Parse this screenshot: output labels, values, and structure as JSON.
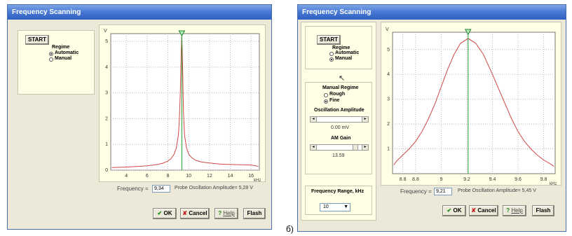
{
  "left": {
    "title": "Frequency Scanning",
    "start": "START",
    "regime_title": "Regime",
    "regime_options": [
      "Automatic",
      "Manual"
    ],
    "regime_selected": "Automatic",
    "frequency_label": "Frequency =",
    "frequency_value": "9,34",
    "amplitude_text": "Probe Oscillation Amplitude= 5,28 V",
    "buttons": {
      "ok": "OK",
      "cancel": "Cancel",
      "help": "Help",
      "flash": "Flash"
    },
    "chart_data": {
      "type": "line",
      "ylabel": "V",
      "xlabel": "kHz",
      "x_ticks": [
        "4",
        "6",
        "8",
        "10",
        "12",
        "14",
        "16"
      ],
      "y_ticks": [
        "0",
        "1",
        "2",
        "3",
        "4",
        "5"
      ],
      "xlim": [
        2.5,
        16.8
      ],
      "ylim": [
        0,
        5.3
      ],
      "marker_x": 9.34,
      "series": [
        {
          "color": "#d04848",
          "x": [
            2.6,
            4,
            5,
            6,
            7,
            7.5,
            8,
            8.3,
            8.6,
            8.8,
            9.0,
            9.1,
            9.2,
            9.28,
            9.34,
            9.4,
            9.5,
            9.6,
            9.8,
            10.0,
            10.3,
            10.7,
            11.2,
            12,
            13,
            14,
            15,
            16,
            16.7
          ],
          "y": [
            0.1,
            0.12,
            0.14,
            0.17,
            0.22,
            0.27,
            0.35,
            0.45,
            0.62,
            0.85,
            1.35,
            1.9,
            3.1,
            4.6,
            5.2,
            4.3,
            2.2,
            1.35,
            0.85,
            0.62,
            0.48,
            0.38,
            0.32,
            0.28,
            0.24,
            0.22,
            0.21,
            0.2,
            0.15
          ]
        }
      ]
    }
  },
  "right": {
    "title": "Frequency Scanning",
    "start": "START",
    "regime_title": "Regime",
    "regime_options": [
      "Automatic",
      "Manual"
    ],
    "regime_selected": "Manual",
    "manual_title": "Manual Regime",
    "manual_options": [
      "Rough",
      "Fine"
    ],
    "manual_selected": "Fine",
    "osc_title": "Oscillation Amplitude",
    "osc_value": "0.00 mV",
    "am_title": "AM Gain",
    "am_value": "13.59",
    "range_title": "Frequency Range, kHz",
    "range_value": "10",
    "frequency_label": "Frequency =",
    "frequency_value": "9,21",
    "amplitude_text": "Probe Oscillation Amplitude= 5,45 V",
    "buttons": {
      "ok": "OK",
      "cancel": "Cancel",
      "help": "Help",
      "flash": "Flash"
    },
    "chart_data": {
      "type": "line",
      "ylabel": "V",
      "xlabel": "kHz",
      "x_ticks": [
        "8.8",
        "8.8",
        "9",
        "9.2",
        "9.4",
        "9.6",
        "9.8"
      ],
      "y_ticks": [
        "1",
        "2",
        "3",
        "4",
        "5"
      ],
      "xlim": [
        8.62,
        9.89
      ],
      "ylim": [
        0,
        5.7
      ],
      "marker_x": 9.21,
      "series": [
        {
          "color": "#d04848",
          "x": [
            8.63,
            8.65,
            8.7,
            8.75,
            8.8,
            8.85,
            8.9,
            8.95,
            9.0,
            9.05,
            9.1,
            9.15,
            9.21,
            9.27,
            9.33,
            9.4,
            9.45,
            9.5,
            9.55,
            9.6,
            9.65,
            9.7,
            9.75,
            9.8,
            9.85,
            9.88
          ],
          "y": [
            0.35,
            0.5,
            0.75,
            1.0,
            1.3,
            1.7,
            2.2,
            2.8,
            3.5,
            4.2,
            4.8,
            5.25,
            5.45,
            5.25,
            4.8,
            4.0,
            3.4,
            2.8,
            2.2,
            1.7,
            1.3,
            1.0,
            0.75,
            0.55,
            0.4,
            0.3
          ]
        }
      ]
    }
  },
  "caption": "б)"
}
